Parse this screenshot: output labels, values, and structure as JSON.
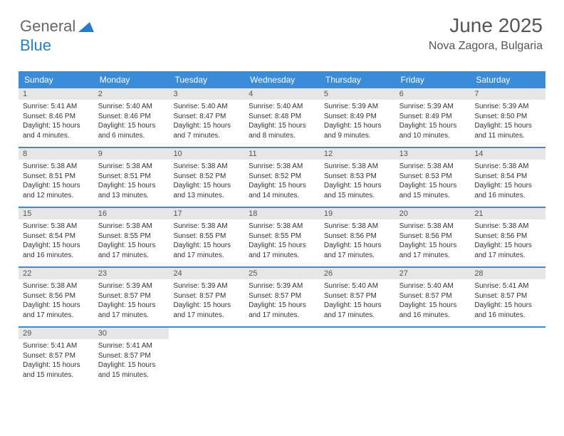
{
  "logo": {
    "text1": "General",
    "text2": "Blue"
  },
  "title": {
    "month": "June 2025",
    "location": "Nova Zagora, Bulgaria"
  },
  "colors": {
    "header_bg": "#3a8bd8",
    "header_text": "#ffffff",
    "daynum_bg": "#e6e6e6",
    "daynum_text": "#555555",
    "body_text": "#333333",
    "border": "#3a8bd8",
    "logo_blue": "#2a7cc7",
    "logo_gray": "#666666"
  },
  "day_headers": [
    "Sunday",
    "Monday",
    "Tuesday",
    "Wednesday",
    "Thursday",
    "Friday",
    "Saturday"
  ],
  "weeks": [
    [
      {
        "n": "1",
        "sr": "5:41 AM",
        "ss": "8:46 PM",
        "dl": "15 hours and 4 minutes."
      },
      {
        "n": "2",
        "sr": "5:40 AM",
        "ss": "8:46 PM",
        "dl": "15 hours and 6 minutes."
      },
      {
        "n": "3",
        "sr": "5:40 AM",
        "ss": "8:47 PM",
        "dl": "15 hours and 7 minutes."
      },
      {
        "n": "4",
        "sr": "5:40 AM",
        "ss": "8:48 PM",
        "dl": "15 hours and 8 minutes."
      },
      {
        "n": "5",
        "sr": "5:39 AM",
        "ss": "8:49 PM",
        "dl": "15 hours and 9 minutes."
      },
      {
        "n": "6",
        "sr": "5:39 AM",
        "ss": "8:49 PM",
        "dl": "15 hours and 10 minutes."
      },
      {
        "n": "7",
        "sr": "5:39 AM",
        "ss": "8:50 PM",
        "dl": "15 hours and 11 minutes."
      }
    ],
    [
      {
        "n": "8",
        "sr": "5:38 AM",
        "ss": "8:51 PM",
        "dl": "15 hours and 12 minutes."
      },
      {
        "n": "9",
        "sr": "5:38 AM",
        "ss": "8:51 PM",
        "dl": "15 hours and 13 minutes."
      },
      {
        "n": "10",
        "sr": "5:38 AM",
        "ss": "8:52 PM",
        "dl": "15 hours and 13 minutes."
      },
      {
        "n": "11",
        "sr": "5:38 AM",
        "ss": "8:52 PM",
        "dl": "15 hours and 14 minutes."
      },
      {
        "n": "12",
        "sr": "5:38 AM",
        "ss": "8:53 PM",
        "dl": "15 hours and 15 minutes."
      },
      {
        "n": "13",
        "sr": "5:38 AM",
        "ss": "8:53 PM",
        "dl": "15 hours and 15 minutes."
      },
      {
        "n": "14",
        "sr": "5:38 AM",
        "ss": "8:54 PM",
        "dl": "15 hours and 16 minutes."
      }
    ],
    [
      {
        "n": "15",
        "sr": "5:38 AM",
        "ss": "8:54 PM",
        "dl": "15 hours and 16 minutes."
      },
      {
        "n": "16",
        "sr": "5:38 AM",
        "ss": "8:55 PM",
        "dl": "15 hours and 17 minutes."
      },
      {
        "n": "17",
        "sr": "5:38 AM",
        "ss": "8:55 PM",
        "dl": "15 hours and 17 minutes."
      },
      {
        "n": "18",
        "sr": "5:38 AM",
        "ss": "8:55 PM",
        "dl": "15 hours and 17 minutes."
      },
      {
        "n": "19",
        "sr": "5:38 AM",
        "ss": "8:56 PM",
        "dl": "15 hours and 17 minutes."
      },
      {
        "n": "20",
        "sr": "5:38 AM",
        "ss": "8:56 PM",
        "dl": "15 hours and 17 minutes."
      },
      {
        "n": "21",
        "sr": "5:38 AM",
        "ss": "8:56 PM",
        "dl": "15 hours and 17 minutes."
      }
    ],
    [
      {
        "n": "22",
        "sr": "5:38 AM",
        "ss": "8:56 PM",
        "dl": "15 hours and 17 minutes."
      },
      {
        "n": "23",
        "sr": "5:39 AM",
        "ss": "8:57 PM",
        "dl": "15 hours and 17 minutes."
      },
      {
        "n": "24",
        "sr": "5:39 AM",
        "ss": "8:57 PM",
        "dl": "15 hours and 17 minutes."
      },
      {
        "n": "25",
        "sr": "5:39 AM",
        "ss": "8:57 PM",
        "dl": "15 hours and 17 minutes."
      },
      {
        "n": "26",
        "sr": "5:40 AM",
        "ss": "8:57 PM",
        "dl": "15 hours and 17 minutes."
      },
      {
        "n": "27",
        "sr": "5:40 AM",
        "ss": "8:57 PM",
        "dl": "15 hours and 16 minutes."
      },
      {
        "n": "28",
        "sr": "5:41 AM",
        "ss": "8:57 PM",
        "dl": "15 hours and 16 minutes."
      }
    ],
    [
      {
        "n": "29",
        "sr": "5:41 AM",
        "ss": "8:57 PM",
        "dl": "15 hours and 15 minutes."
      },
      {
        "n": "30",
        "sr": "5:41 AM",
        "ss": "8:57 PM",
        "dl": "15 hours and 15 minutes."
      },
      null,
      null,
      null,
      null,
      null
    ]
  ],
  "labels": {
    "sunrise": "Sunrise: ",
    "sunset": "Sunset: ",
    "daylight": "Daylight: "
  }
}
